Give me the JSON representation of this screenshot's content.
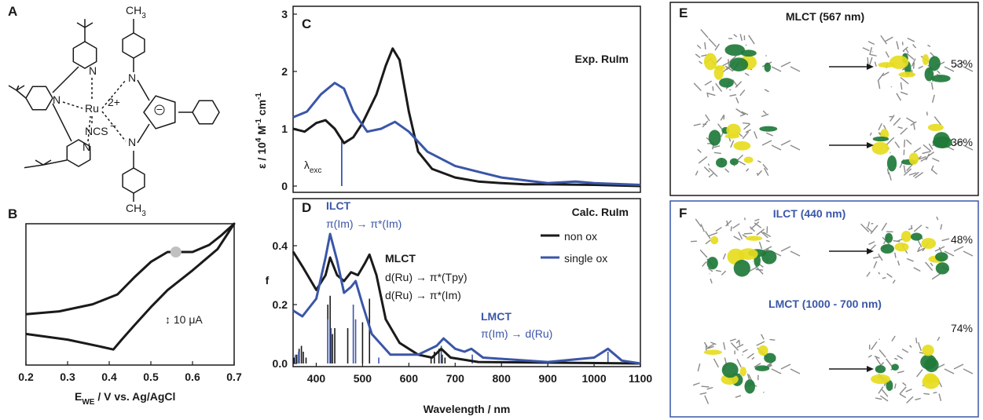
{
  "structure": {
    "label": "A",
    "ru": "Ru",
    "ru_charge": "2+",
    "ncs": "NCS",
    "ncs_charge": "−",
    "im_charge": "−",
    "n": "N",
    "methyl": [
      {
        "text": "CH"
      },
      {
        "sub": "3"
      }
    ]
  },
  "chart_data": [
    {
      "type": "line",
      "label": "B",
      "xlabel": [
        {
          "text": "E"
        },
        {
          "sub": "WE"
        },
        {
          "text": " / V vs. Ag/AgCl"
        }
      ],
      "annotation": "↕ 10 μA",
      "xlim": [
        0.2,
        0.7
      ],
      "ylim": [
        -40,
        60
      ],
      "xticks": [
        0.2,
        0.3,
        0.4,
        0.5,
        0.6,
        0.7
      ],
      "series": [
        {
          "color": "#1a1a1a",
          "x": [
            0.2,
            0.28,
            0.36,
            0.42,
            0.46,
            0.5,
            0.54,
            0.6,
            0.64,
            0.67,
            0.7,
            0.66,
            0.6,
            0.54,
            0.5,
            0.46,
            0.43,
            0.41,
            0.38,
            0.3,
            0.2
          ],
          "values": [
            -4,
            -2,
            3,
            10,
            22,
            33,
            40,
            40,
            45,
            52,
            60,
            42,
            27,
            13,
            1,
            -12,
            -22,
            -29,
            -27,
            -22,
            -18
          ]
        }
      ],
      "marker": {
        "x": 0.56,
        "y": 40,
        "color": "#c0c0c0"
      }
    },
    {
      "type": "line",
      "label": "C",
      "title": "Exp. RuIm",
      "ylabel": [
        {
          "text": "ε / 10"
        },
        {
          "sup": "4"
        },
        {
          "text": " M"
        },
        {
          "sup": "-1"
        },
        {
          "text": " cm"
        },
        {
          "sup": "-1"
        }
      ],
      "xlim": [
        350,
        1100
      ],
      "ylim": [
        0,
        3
      ],
      "yticks": [
        0,
        1,
        2,
        3
      ],
      "series": [
        {
          "color": "#1a1a1a",
          "x": [
            350,
            375,
            400,
            420,
            440,
            460,
            480,
            500,
            530,
            550,
            565,
            580,
            600,
            620,
            650,
            700,
            750,
            800,
            850,
            900,
            1000,
            1100
          ],
          "values": [
            1.0,
            0.95,
            1.1,
            1.15,
            1.0,
            0.75,
            0.85,
            1.1,
            1.6,
            2.1,
            2.4,
            2.2,
            1.3,
            0.6,
            0.3,
            0.15,
            0.08,
            0.05,
            0.03,
            0.03,
            0.02,
            0.0
          ]
        },
        {
          "color": "#3a56a8",
          "x": [
            350,
            380,
            410,
            440,
            460,
            480,
            510,
            540,
            570,
            600,
            640,
            700,
            750,
            800,
            900,
            960,
            1000,
            1100
          ],
          "values": [
            1.2,
            1.3,
            1.6,
            1.8,
            1.7,
            1.3,
            0.95,
            1.0,
            1.12,
            0.95,
            0.6,
            0.35,
            0.25,
            0.15,
            0.05,
            0.08,
            0.05,
            0.02
          ]
        }
      ],
      "excitation": {
        "value": 455,
        "label": [
          {
            "text": "λ"
          },
          {
            "sub": "exc"
          }
        ]
      }
    },
    {
      "type": "line",
      "label": "D",
      "title": "Calc. RuIm",
      "ylabel": "f",
      "xlabel": "Wavelength / nm",
      "xlim": [
        350,
        1100
      ],
      "ylim": [
        0,
        0.56
      ],
      "xticks": [
        400,
        500,
        600,
        700,
        800,
        900,
        1000,
        1100
      ],
      "yticks": [
        {
          "value": 0,
          "label": "0.0"
        },
        0.2,
        0.4
      ],
      "legend": "upper right",
      "series": [
        {
          "name": "non ox",
          "color": "#1a1a1a",
          "x": [
            350,
            370,
            400,
            420,
            430,
            445,
            460,
            475,
            490,
            505,
            515,
            530,
            550,
            580,
            620,
            650,
            670,
            690,
            750,
            1100
          ],
          "values": [
            0.38,
            0.33,
            0.25,
            0.3,
            0.36,
            0.3,
            0.28,
            0.31,
            0.3,
            0.34,
            0.37,
            0.3,
            0.15,
            0.07,
            0.03,
            0.02,
            0.05,
            0.02,
            0.005,
            0
          ]
        },
        {
          "name": "single ox",
          "color": "#3a56a8",
          "x": [
            350,
            370,
            400,
            420,
            430,
            445,
            460,
            475,
            485,
            500,
            520,
            560,
            620,
            660,
            675,
            700,
            720,
            735,
            760,
            900,
            1000,
            1030,
            1060,
            1100
          ],
          "values": [
            0.18,
            0.16,
            0.22,
            0.36,
            0.44,
            0.35,
            0.24,
            0.26,
            0.28,
            0.2,
            0.1,
            0.03,
            0.03,
            0.06,
            0.085,
            0.05,
            0.04,
            0.05,
            0.02,
            0.005,
            0.02,
            0.05,
            0.01,
            0
          ]
        }
      ],
      "sticks": [
        {
          "color": "#1a1a1a",
          "x": [
            352,
            358,
            363,
            368,
            372,
            378,
            425,
            430,
            435,
            440,
            468,
            500,
            515,
            648,
            655,
            665,
            672,
            678
          ],
          "values": [
            0.02,
            0.03,
            0.05,
            0.06,
            0.04,
            0.02,
            0.2,
            0.23,
            0.1,
            0.12,
            0.12,
            0.14,
            0.22,
            0.02,
            0.04,
            0.05,
            0.03,
            0.02
          ]
        },
        {
          "color": "#3a56a8",
          "x": [
            355,
            362,
            425,
            432,
            480,
            485,
            535,
            670,
            737,
            1030
          ],
          "values": [
            0.03,
            0.04,
            0.15,
            0.12,
            0.2,
            0.15,
            0.02,
            0.06,
            0.03,
            0.04
          ]
        }
      ],
      "annotations": [
        {
          "text": "ILCT",
          "color": "#3a56a8"
        },
        {
          "text": "π(Im) → π*(Im)",
          "color": "#3a56a8"
        },
        {
          "text": "MLCT",
          "color": "#1a1a1a"
        },
        {
          "text": "d(Ru) → π*(Tpy)",
          "color": "#1a1a1a"
        },
        {
          "text": "d(Ru) → π*(Im)",
          "color": "#1a1a1a"
        },
        {
          "text": "LMCT",
          "color": "#3a56a8"
        },
        {
          "text": "π(Im) → d(Ru)",
          "color": "#3a56a8"
        }
      ]
    }
  ],
  "orbitals": {
    "E": {
      "label": "E",
      "title": "MLCT (567 nm)",
      "percents": [
        "53%",
        "36%"
      ]
    },
    "F": {
      "label": "F",
      "title": "ILCT (440 nm)",
      "subtitle": "LMCT (1000 - 700 nm)",
      "percents": [
        "48%",
        "74%"
      ]
    }
  }
}
